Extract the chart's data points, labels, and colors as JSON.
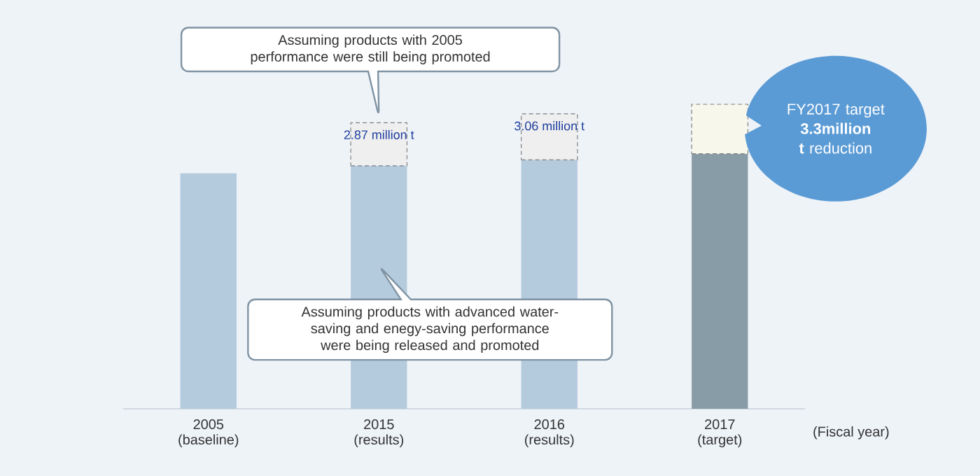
{
  "chart_data": {
    "type": "bar",
    "stacked": true,
    "categories": [
      "2005 (baseline)",
      "2015 (results)",
      "2016 (results)",
      "2017 (target)"
    ],
    "xlabel": "(Fiscal year)",
    "series": [
      {
        "colors": [
          "#b4cbdd",
          "#b4cbdd",
          "#b4cbdd",
          "#889ca8"
        ],
        "values": [
          15.7,
          16.2,
          16.6,
          17.0
        ]
      },
      {
        "colors": [
          null,
          "#efefef",
          "#efefef",
          "#f7f7ec"
        ],
        "line_style": "dashed",
        "values": [
          null,
          2.87,
          3.06,
          3.3
        ],
        "value_labels": [
          null,
          "2.87 million t",
          "3.06 million t",
          null
        ]
      }
    ],
    "annotations": [
      "Assuming products with 2005 performance were still being promoted",
      "Assuming products with advanced water-saving and enegy-saving performance were being released and promoted",
      "FY2017 target **3.3million t** reduction"
    ]
  }
}
